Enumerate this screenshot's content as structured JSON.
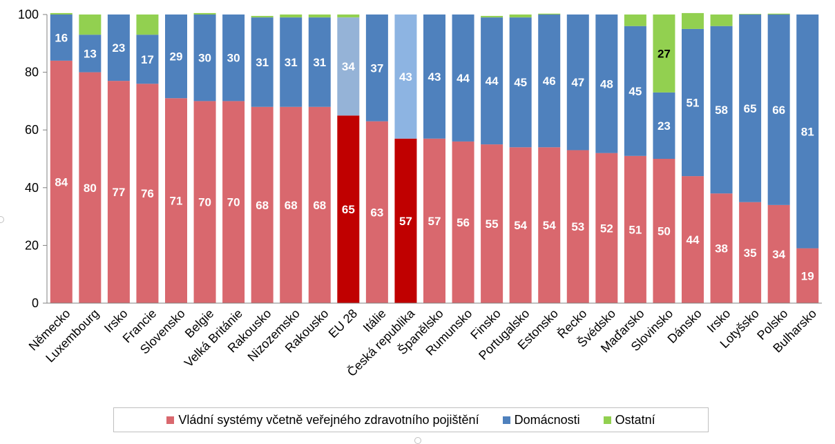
{
  "chart_data": {
    "type": "bar",
    "stacked": true,
    "title": "",
    "xlabel": "",
    "ylabel": "",
    "ylim": [
      0,
      100
    ],
    "yticks": [
      0,
      20,
      40,
      60,
      80,
      100
    ],
    "grid": false,
    "legend_position": "bottom",
    "categories": [
      "Německo",
      "Luxembourg",
      "Irsko",
      "Francie",
      "Slovensko",
      "Belgie",
      "Velká Británie",
      "Rakousko",
      "Nizozemsko",
      "Rakousko",
      "EU 28",
      "Itálie",
      "Česká republika",
      "Španělsko",
      "Rumunsko",
      "Finsko",
      "Portugalsko",
      "Estonsko",
      "Řecko",
      "Švédsko",
      "Maďarsko",
      "Slovinsko",
      "Dánsko",
      "Irsko",
      "Lotyšsko",
      "Polsko",
      "Bulharsko"
    ],
    "series": [
      {
        "name": "Vládní systémy včetně veřejného zdravotního pojištění",
        "color": "#d9686e",
        "highlight_color": "#c00000",
        "values": [
          84,
          80,
          77,
          76,
          71,
          70,
          70,
          68,
          68,
          68,
          65,
          63,
          57,
          57,
          56,
          55,
          54,
          54,
          53,
          52,
          51,
          50,
          44,
          38,
          35,
          34,
          19
        ],
        "labels": [
          "84",
          "80",
          "77",
          "76",
          "71",
          "70",
          "70",
          "68",
          "68",
          "68",
          "65",
          "63",
          "57",
          "57",
          "56",
          "55",
          "54",
          "54",
          "53",
          "52",
          "51",
          "50",
          "44",
          "38",
          "35",
          "34",
          "19"
        ]
      },
      {
        "name": "Domácnosti",
        "color": "#4f81bd",
        "highlight_colors": [
          "#95b3d7",
          "#8db4e2"
        ],
        "values": [
          16,
          13,
          23,
          17,
          29,
          30,
          30,
          31,
          31,
          31,
          34,
          37,
          43,
          43,
          44,
          44,
          45,
          46,
          47,
          48,
          45,
          23,
          51,
          58,
          65,
          66,
          81
        ],
        "labels": [
          "16",
          "13",
          "23",
          "17",
          "29",
          "30",
          "30",
          "31",
          "31",
          "31",
          "34",
          "37",
          "43",
          "43",
          "44",
          "44",
          "45",
          "46",
          "47",
          "48",
          "45",
          "23",
          "51",
          "58",
          "65",
          "66",
          "81"
        ]
      },
      {
        "name": "Ostatní",
        "color": "#92d050",
        "values": [
          0.5,
          7,
          0,
          7,
          0,
          0.5,
          0,
          0.5,
          1,
          1,
          1,
          0,
          0,
          0,
          0,
          0.5,
          1,
          0.3,
          0,
          0,
          4,
          27,
          5.5,
          4,
          0.2,
          0.3,
          0
        ],
        "labels": [
          "",
          "",
          "",
          "",
          "",
          "",
          "",
          "",
          "",
          "",
          "",
          "",
          "",
          "",
          "",
          "",
          "",
          "",
          "",
          "",
          "",
          "27",
          "",
          "",
          "",
          "",
          ""
        ]
      }
    ],
    "highlight_categories": [
      10,
      12
    ]
  },
  "legend": {
    "items": [
      {
        "label": "Vládní systémy včetně veřejného zdravotního pojištění",
        "color": "#d9686e"
      },
      {
        "label": "Domácnosti",
        "color": "#4f81bd"
      },
      {
        "label": "Ostatní",
        "color": "#92d050"
      }
    ]
  }
}
